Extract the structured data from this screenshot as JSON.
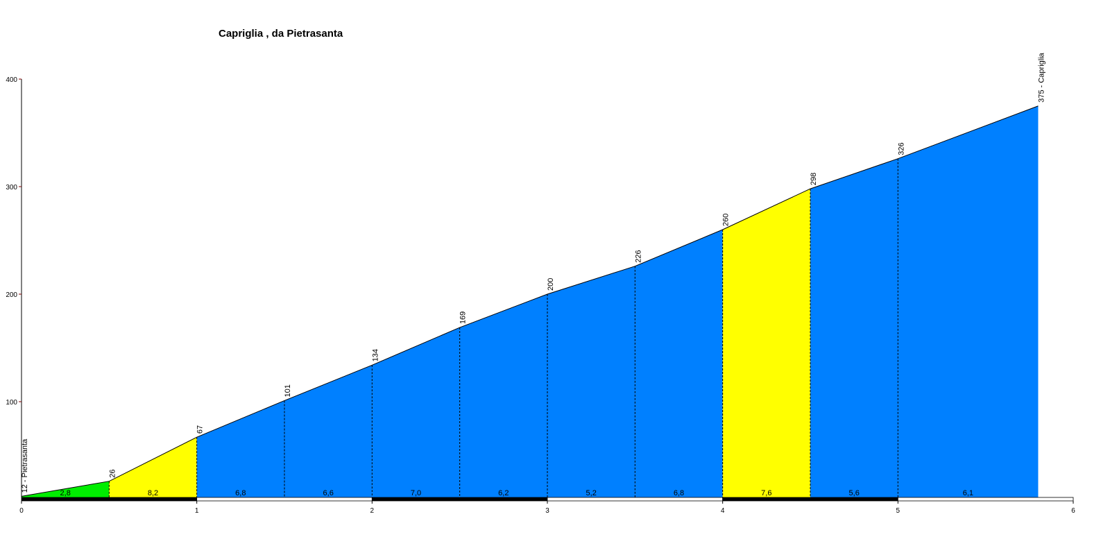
{
  "chart_data": {
    "type": "elevation-profile",
    "title": "Capriglia , da Pietrasanta",
    "x": [
      0,
      0.5,
      1,
      1.5,
      2,
      2.5,
      3,
      3.5,
      4,
      4.5,
      5,
      5.8
    ],
    "values": [
      12,
      26,
      67,
      101,
      134,
      169,
      200,
      226,
      260,
      298,
      326,
      375
    ],
    "value_labels": [
      "12 - Pietrasanta",
      "26",
      "67",
      "101",
      "134",
      "169",
      "200",
      "226",
      "260",
      "298",
      "326",
      "375 - Capriglia"
    ],
    "segments": {
      "values": [
        2.8,
        8.2,
        6.8,
        6.6,
        7.0,
        6.2,
        5.2,
        6.8,
        7.6,
        5.6,
        6.1
      ],
      "value_labels": [
        "2,8",
        "8,2",
        "6,8",
        "6,6",
        "7,0",
        "6,2",
        "5,2",
        "6,8",
        "7,6",
        "5,6",
        "6,1"
      ],
      "colors": [
        "#00ee00",
        "#ffff00",
        "#0080ff",
        "#0080ff",
        "#0080ff",
        "#0080ff",
        "#0080ff",
        "#0080ff",
        "#ffff00",
        "#0080ff",
        "#0080ff"
      ]
    },
    "xlim": [
      0,
      6
    ],
    "xticks": [
      0,
      1,
      2,
      3,
      4,
      5,
      6
    ],
    "ylim": [
      0,
      400
    ],
    "yticks": [
      100,
      200,
      300,
      400
    ]
  }
}
